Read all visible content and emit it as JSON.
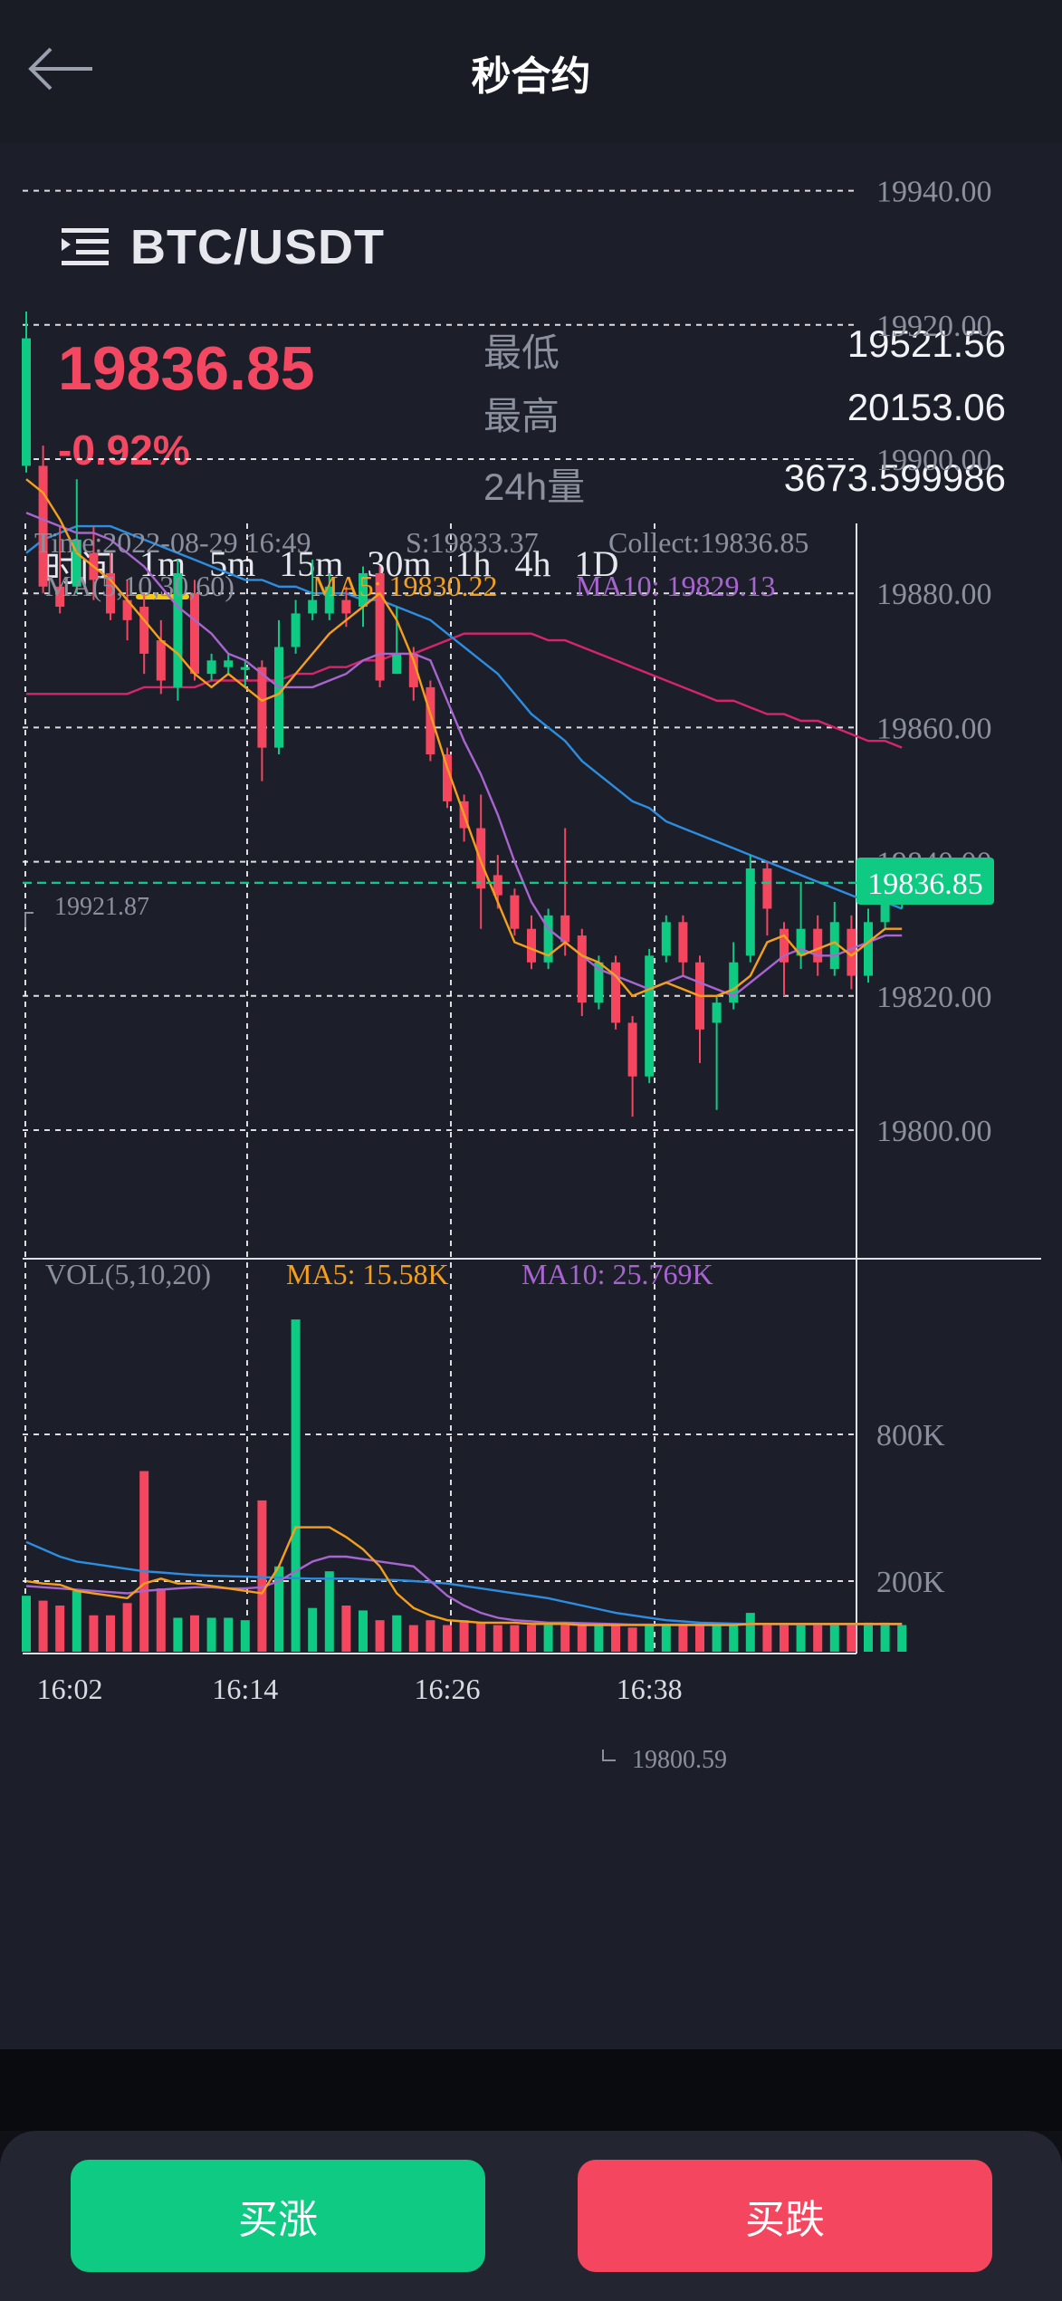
{
  "header": {
    "title": "秒合约"
  },
  "pair": {
    "name": "BTC/USDT"
  },
  "ticker": {
    "price": "19836.85",
    "change": "-0.92%",
    "low_label": "最低",
    "low_value": "19521.56",
    "high_label": "最高",
    "high_value": "20153.06",
    "vol_label": "24h量",
    "vol_value": "3673.599986"
  },
  "timeframes": {
    "label": "时间",
    "items": [
      "1m",
      "5m",
      "15m",
      "30m",
      "1h",
      "4h",
      "1D"
    ],
    "active": "1m"
  },
  "colors": {
    "up": "#0fca83",
    "down": "#f4475f",
    "ma5": "#f59f1b",
    "ma10": "#a865cf",
    "ma30": "#2d8de0",
    "ma60": "#d7246c"
  },
  "bottom": {
    "peek_text": "",
    "buy_label": "买涨",
    "sell_label": "买跌"
  },
  "chart_data": {
    "type": "candlestick",
    "info": {
      "time": "Time:2022-08-29 16:49",
      "s": "S:19833.37",
      "collect": "Collect:19836.85"
    },
    "ma_legend": {
      "label": "MA(5,10,30,60)",
      "ma5": "MA5: 19830.22",
      "ma10": "MA10: 19829.13"
    },
    "vol_legend": {
      "label": "VOL(5,10,20)",
      "ma5": "MA5: 15.58K",
      "ma10": "MA10: 25.769K"
    },
    "y_ticks": [
      "19940.00",
      "19920.00",
      "19900.00",
      "19880.00",
      "19860.00",
      "19840.00",
      "19820.00",
      "19800.00"
    ],
    "y_tick_values": [
      19940,
      19920,
      19900,
      19880,
      19860,
      19840,
      19820,
      19800
    ],
    "vol_ticks": [
      "800K",
      "200K"
    ],
    "vol_tick_values": [
      800,
      200
    ],
    "x_ticks": [
      "16:02",
      "16:14",
      "16:26",
      "16:38"
    ],
    "x_tick_index": [
      1,
      13,
      25,
      37
    ],
    "price_range": [
      19787,
      19942
    ],
    "vol_range": [
      0,
      1350
    ],
    "last_price": 19836.85,
    "last_label": "19836.85",
    "max_label": "19921.87",
    "min_label": "19800.59",
    "candles": [
      [
        19899,
        19918,
        19922,
        19898,
        140
      ],
      [
        19899,
        19881,
        19902,
        19880,
        120
      ],
      [
        19881,
        19878,
        19890,
        19877,
        100
      ],
      [
        19881,
        19888,
        19897,
        19880,
        160
      ],
      [
        19886,
        19882,
        19890,
        19879,
        60
      ],
      [
        19883,
        19877,
        19886,
        19876,
        60
      ],
      [
        19879,
        19876,
        19882,
        19873,
        110
      ],
      [
        19878,
        19871,
        19880,
        19868,
        650
      ],
      [
        19873,
        19867,
        19876,
        19865,
        170
      ],
      [
        19866,
        19883,
        19885,
        19864,
        50
      ],
      [
        19880,
        19868,
        19882,
        19867,
        60
      ],
      [
        19868,
        19870,
        19871,
        19867,
        50
      ],
      [
        19869,
        19870,
        19871,
        19868,
        50
      ],
      [
        19869,
        19869,
        19870,
        19866,
        40
      ],
      [
        19869,
        19857,
        19870,
        19852,
        530
      ],
      [
        19857,
        19872,
        19876,
        19856,
        260
      ],
      [
        19872,
        19877,
        19879,
        19871,
        1270
      ],
      [
        19877,
        19879,
        19885,
        19876,
        90
      ],
      [
        19877,
        19881,
        19883,
        19876,
        240
      ],
      [
        19879,
        19877,
        19881,
        19875,
        100
      ],
      [
        19878,
        19883,
        19884,
        19875,
        80
      ],
      [
        19883,
        19867,
        19884,
        19866,
        40
      ],
      [
        19868,
        19871,
        19878,
        19868,
        60
      ],
      [
        19871,
        19866,
        19872,
        19864,
        20
      ],
      [
        19866,
        19856,
        19867,
        19855,
        40
      ],
      [
        19856,
        19849,
        19857,
        19848,
        20
      ],
      [
        19849,
        19845,
        19850,
        19843,
        40
      ],
      [
        19845,
        19836,
        19850,
        19830,
        30
      ],
      [
        19838,
        19835,
        19841,
        19833,
        20
      ],
      [
        19835,
        19830,
        19836,
        19829,
        20
      ],
      [
        19830,
        19825,
        19832,
        19824,
        20
      ],
      [
        19825,
        19832,
        19833,
        19824,
        20
      ],
      [
        19832,
        19828,
        19845,
        19826,
        20
      ],
      [
        19829,
        19819,
        19830,
        19817,
        20
      ],
      [
        19819,
        19825,
        19826,
        19818,
        20
      ],
      [
        19825,
        19816,
        19826,
        19815,
        20
      ],
      [
        19816,
        19808,
        19817,
        19802,
        10
      ],
      [
        19808,
        19826,
        19827,
        19807,
        20
      ],
      [
        19826,
        19831,
        19832,
        19825,
        20
      ],
      [
        19831,
        19825,
        19832,
        19823,
        20
      ],
      [
        19825,
        19815,
        19826,
        19810,
        20
      ],
      [
        19816,
        19819,
        19820,
        19803,
        20
      ],
      [
        19819,
        19825,
        19828,
        19818,
        20
      ],
      [
        19826,
        19839,
        19841,
        19825,
        70
      ],
      [
        19839,
        19833,
        19840,
        19829,
        20
      ],
      [
        19830,
        19825,
        19831,
        19820,
        20
      ],
      [
        19826,
        19830,
        19837,
        19824,
        20
      ],
      [
        19830,
        19825,
        19832,
        19823,
        20
      ],
      [
        19824,
        19831,
        19834,
        19823,
        20
      ],
      [
        19830,
        19823,
        19832,
        19821,
        20
      ],
      [
        19823,
        19831,
        19833,
        19822,
        30
      ],
      [
        19831,
        19836,
        19838,
        19830,
        30
      ],
      [
        19834,
        19837,
        19839,
        19833,
        20
      ]
    ],
    "ma60": [
      19865,
      19865,
      19865,
      19865,
      19865,
      19865,
      19865,
      19866,
      19866,
      19866,
      19866,
      19867,
      19867,
      19867,
      19867,
      19867,
      19868,
      19868,
      19869,
      19869,
      19870,
      19870,
      19871,
      19871,
      19872,
      19873,
      19874,
      19874,
      19874,
      19874,
      19874,
      19873,
      19873,
      19872,
      19871,
      19870,
      19869,
      19868,
      19867,
      19866,
      19865,
      19864,
      19864,
      19863,
      19862,
      19862,
      19861,
      19861,
      19860,
      19859,
      19858,
      19858,
      19857
    ],
    "ma30": [
      19886,
      19888,
      19889,
      19890,
      19890,
      19890,
      19889,
      19888,
      19887,
      19886,
      19885,
      19884,
      19883,
      19882,
      19882,
      19881,
      19881,
      19880,
      19880,
      19880,
      19879,
      19879,
      19878,
      19877,
      19876,
      19874,
      19872,
      19870,
      19868,
      19865,
      19862,
      19860,
      19858,
      19855,
      19853,
      19851,
      19849,
      19848,
      19846,
      19845,
      19844,
      19843,
      19842,
      19841,
      19840,
      19839,
      19838,
      19837,
      19836,
      19835,
      19834,
      19834,
      19833
    ],
    "ma10": [
      19892,
      19891,
      19890,
      19889,
      19889,
      19888,
      19886,
      19884,
      19881,
      19878,
      19876,
      19874,
      19871,
      19870,
      19868,
      19866,
      19866,
      19866,
      19867,
      19868,
      19870,
      19871,
      19871,
      19871,
      19870,
      19864,
      19858,
      19853,
      19847,
      19840,
      19834,
      19830,
      19828,
      19826,
      19824,
      19823,
      19822,
      19821,
      19822,
      19823,
      19822,
      19821,
      19820,
      19822,
      19824,
      19826,
      19827,
      19826,
      19826,
      19827,
      19828,
      19829,
      19829
    ],
    "ma5": [
      19897,
      19895,
      19891,
      19886,
      19884,
      19882,
      19879,
      19876,
      19873,
      19871,
      19868,
      19866,
      19868,
      19866,
      19864,
      19865,
      19868,
      19871,
      19874,
      19876,
      19878,
      19880,
      19876,
      19870,
      19862,
      19854,
      19847,
      19840,
      19834,
      19828,
      19827,
      19826,
      19828,
      19826,
      19825,
      19823,
      19820,
      19821,
      19822,
      19821,
      19820,
      19820,
      19821,
      19823,
      19828,
      19829,
      19826,
      19827,
      19828,
      19826,
      19828,
      19830,
      19830
    ],
    "vol_ma5": [
      200,
      190,
      185,
      160,
      150,
      140,
      130,
      190,
      210,
      190,
      190,
      180,
      170,
      160,
      150,
      260,
      420,
      420,
      420,
      380,
      330,
      260,
      150,
      90,
      60,
      40,
      35,
      30,
      30,
      30,
      25,
      25,
      25,
      20,
      20,
      20,
      20,
      20,
      20,
      20,
      20,
      20,
      20,
      25,
      25,
      25,
      25,
      25,
      25,
      25,
      25,
      25,
      25
    ],
    "vol_ma10": [
      180,
      175,
      170,
      165,
      160,
      155,
      150,
      160,
      165,
      170,
      175,
      175,
      170,
      170,
      175,
      200,
      240,
      280,
      300,
      300,
      290,
      280,
      270,
      260,
      200,
      140,
      100,
      70,
      50,
      40,
      35,
      30,
      30,
      28,
      26,
      24,
      22,
      22,
      22,
      22,
      22,
      22,
      22,
      24,
      24,
      24,
      24,
      24,
      24,
      24,
      24,
      24,
      24
    ],
    "vol_ma20": [
      360,
      330,
      300,
      280,
      270,
      260,
      250,
      240,
      235,
      230,
      225,
      222,
      220,
      218,
      216,
      214,
      212,
      210,
      210,
      210,
      208,
      206,
      204,
      200,
      195,
      190,
      180,
      170,
      160,
      150,
      140,
      130,
      115,
      100,
      85,
      70,
      60,
      50,
      40,
      35,
      30,
      28,
      26,
      25,
      25,
      24,
      24,
      24,
      24,
      24,
      24,
      24,
      24
    ]
  }
}
